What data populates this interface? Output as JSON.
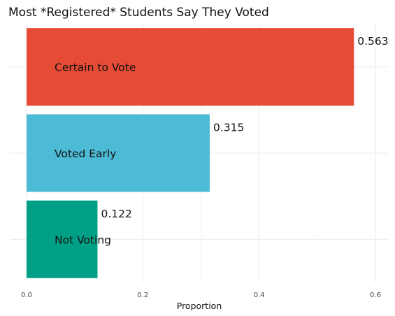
{
  "chart_data": {
    "type": "bar",
    "orientation": "horizontal",
    "title": "Most *Registered* Students Say They Voted",
    "xlabel": "Proportion",
    "ylabel": "",
    "xlim": [
      0,
      0.6
    ],
    "x_ticks": [
      "0.0",
      "0.2",
      "0.4",
      "0.6"
    ],
    "x_tick_values": [
      0.0,
      0.2,
      0.4,
      0.6
    ],
    "grid": true,
    "legend": "none",
    "categories": [
      "Certain to Vote",
      "Voted Early",
      "Not Voting"
    ],
    "values": [
      0.563,
      0.315,
      0.122
    ],
    "value_labels": [
      "0.563",
      "0.315",
      "0.122"
    ],
    "colors": [
      "#E64B35",
      "#4DBBD5",
      "#00A087"
    ]
  }
}
